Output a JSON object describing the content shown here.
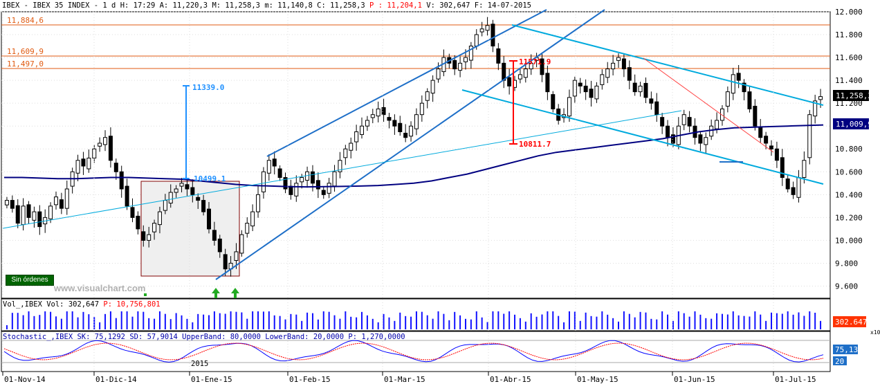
{
  "header": {
    "symbol": "IBEX - IBEX 35 INDEX",
    "interval": "1 d",
    "quote_plain": "H: 17:29 A: 11,220,3 M: 11,258,3 m: 11,140,8 C: 11,258,3",
    "quote_p_label": "P :",
    "quote_p_value": "11,204,1",
    "quote_tail": "V: 302,647 F: 14-07-2015"
  },
  "buttons": {
    "orders": "Sin órdenes"
  },
  "watermark": "www.visualchart.com",
  "colors": {
    "up": "#ffffff",
    "down": "#000000",
    "ma": "#000080",
    "channel": "#1e6fc8",
    "trendline": "#00aadd",
    "resistance": "#e05a10",
    "measure_red": "#ff0000",
    "measure_blue": "#1e90ff",
    "volume": "#1010ff",
    "stoch_k": "#0000ff",
    "stoch_d": "#ff0000",
    "signal_arrow": "#22aa22",
    "price_tag_last": "#000000",
    "price_tag_ma": "#000080",
    "vol_tag": "#ff3300",
    "stoch_tag": "#1e6fc8"
  },
  "annotations": {
    "resistance_levels": [
      "11,884,6",
      "11,609,9",
      "11,497,0"
    ],
    "measure_red_top": "11571.9",
    "measure_red_bottom": "10811.7",
    "measure_blue_top": "11339.0",
    "measure_blue_bottom": "10499.1"
  },
  "price_tags": {
    "last": "11,258,3",
    "ma": "11,009,9"
  },
  "volume_panel": {
    "title_plain": "Vol_,IBEX Vol: 302,647",
    "title_p_label": "P:",
    "title_p_value": "10,756,801",
    "last_tag": "302.647"
  },
  "stoch_panel": {
    "title": "Stochastic_,IBEX SK: 75,1292 SD: 57,9014 UpperBand: 80,0000 LowerBand: 20,0000 P: 1,270,0000",
    "tag_k": "75,13",
    "tag_lower": "20",
    "scale_mult": "x10",
    "year_label": "2015"
  },
  "chart_data": {
    "type": "candlestick",
    "title": "IBEX - IBEX 35 INDEX",
    "y_ticks": [
      "12.000",
      "11.800",
      "11.600",
      "11.400",
      "11.200",
      "11.000",
      "10.800",
      "10.600",
      "10.400",
      "10.200",
      "10.000",
      "9.800",
      "9.600"
    ],
    "ylim": [
      9500,
      12000
    ],
    "x_ticks": [
      "01-Nov-14",
      "01-Dic-14",
      "01-Ene-15",
      "01-Feb-15",
      "01-Mar-15",
      "01-Abr-15",
      "01-May-15",
      "01-Jun-15",
      "01-Jul-15"
    ],
    "last_close": 11258.3,
    "moving_average_last": 11009.9,
    "close_path": [
      10350,
      10280,
      10150,
      10300,
      10200,
      10250,
      10120,
      10200,
      10300,
      10380,
      10280,
      10450,
      10600,
      10700,
      10650,
      10720,
      10800,
      10850,
      10900,
      10700,
      10600,
      10450,
      10300,
      10200,
      10100,
      10000,
      10050,
      10150,
      10250,
      10350,
      10420,
      10450,
      10500,
      10450,
      10400,
      10350,
      10250,
      10100,
      10000,
      9900,
      9750,
      9800,
      9900,
      10050,
      10150,
      10250,
      10400,
      10600,
      10700,
      10650,
      10550,
      10450,
      10400,
      10500,
      10550,
      10600,
      10500,
      10450,
      10400,
      10500,
      10600,
      10700,
      10800,
      10850,
      10950,
      11000,
      11050,
      11100,
      11150,
      11100,
      11050,
      11000,
      10950,
      10900,
      11000,
      11100,
      11200,
      11300,
      11400,
      11500,
      11600,
      11550,
      11500,
      11550,
      11600,
      11700,
      11800,
      11850,
      11880,
      11700,
      11550,
      11400,
      11350,
      11400,
      11450,
      11500,
      11550,
      11600,
      11450,
      11300,
      11150,
      11050,
      11100,
      11250,
      11400,
      11350,
      11300,
      11250,
      11350,
      11450,
      11500,
      11550,
      11600,
      11500,
      11400,
      11300,
      11350,
      11250,
      11200,
      11100,
      11000,
      10900,
      10850,
      11000,
      11100,
      11000,
      10900,
      10850,
      10900,
      11000,
      11050,
      11150,
      11300,
      11450,
      11400,
      11300,
      11150,
      11000,
      10900,
      10850,
      10800,
      10700,
      10550,
      10450,
      10400,
      10550,
      10700,
      11100,
      11220,
      11258
    ],
    "ma_path": [
      10550,
      10550,
      10545,
      10540,
      10540,
      10545,
      10550,
      10550,
      10545,
      10540,
      10535,
      10520,
      10505,
      10490,
      10480,
      10475,
      10470,
      10468,
      10470,
      10472,
      10475,
      10480,
      10490,
      10500,
      10520,
      10550,
      10580,
      10620,
      10660,
      10700,
      10740,
      10770,
      10790,
      10810,
      10830,
      10850,
      10870,
      10890,
      10920,
      10950,
      10970,
      10985,
      10990,
      10995,
      11000,
      11005,
      11009.9
    ],
    "channel_upper": [
      [
        10690,
        10720
      ],
      [
        12000,
        11995
      ]
    ],
    "volume": {
      "last": 302647,
      "period": 10756801
    },
    "stochastic": {
      "SK": 75.1292,
      "SD": 57.9014,
      "upper_band": 80,
      "lower_band": 20,
      "P": 1270
    }
  }
}
